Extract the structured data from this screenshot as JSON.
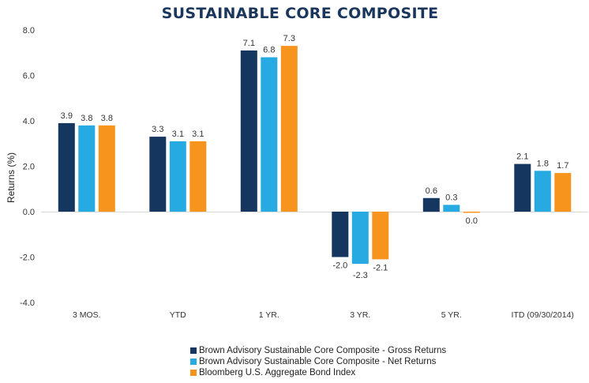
{
  "chart_data": {
    "type": "bar",
    "title": "SUSTAINABLE CORE COMPOSITE",
    "xlabel": "",
    "ylabel": "Returns (%)",
    "ylim": [
      -4.0,
      8.0
    ],
    "yticks": [
      "8.0",
      "6.0",
      "4.0",
      "2.0",
      "0.0",
      "-2.0",
      "-4.0"
    ],
    "ytick_values": [
      8,
      6,
      4,
      2,
      0,
      -2,
      -4
    ],
    "grid": false,
    "legend_position": "bottom-center",
    "categories": [
      "3 MOS.",
      "YTD",
      "1 YR.",
      "3 YR.",
      "5 YR.",
      "ITD (09/30/2014)"
    ],
    "series": [
      {
        "name": "Brown Advisory Sustainable Core Composite - Gross Returns",
        "color": "#14365f",
        "values": [
          3.9,
          3.3,
          7.1,
          -2.0,
          0.6,
          2.1
        ],
        "labels": [
          "3.9",
          "3.3",
          "7.1",
          "-2.0",
          "0.6",
          "2.1"
        ]
      },
      {
        "name": "Brown Advisory Sustainable Core Composite - Net Returns",
        "color": "#27a9e1",
        "values": [
          3.8,
          3.1,
          6.8,
          -2.3,
          0.3,
          1.8
        ],
        "labels": [
          "3.8",
          "3.1",
          "6.8",
          "-2.3",
          "0.3",
          "1.8"
        ]
      },
      {
        "name": "Bloomberg U.S. Aggregate Bond Index",
        "color": "#f7941d",
        "values": [
          3.8,
          3.1,
          7.3,
          -2.1,
          -0.04,
          1.7
        ],
        "labels": [
          "3.8",
          "3.1",
          "7.3",
          "-2.1",
          "0.0",
          "1.7"
        ]
      }
    ]
  }
}
